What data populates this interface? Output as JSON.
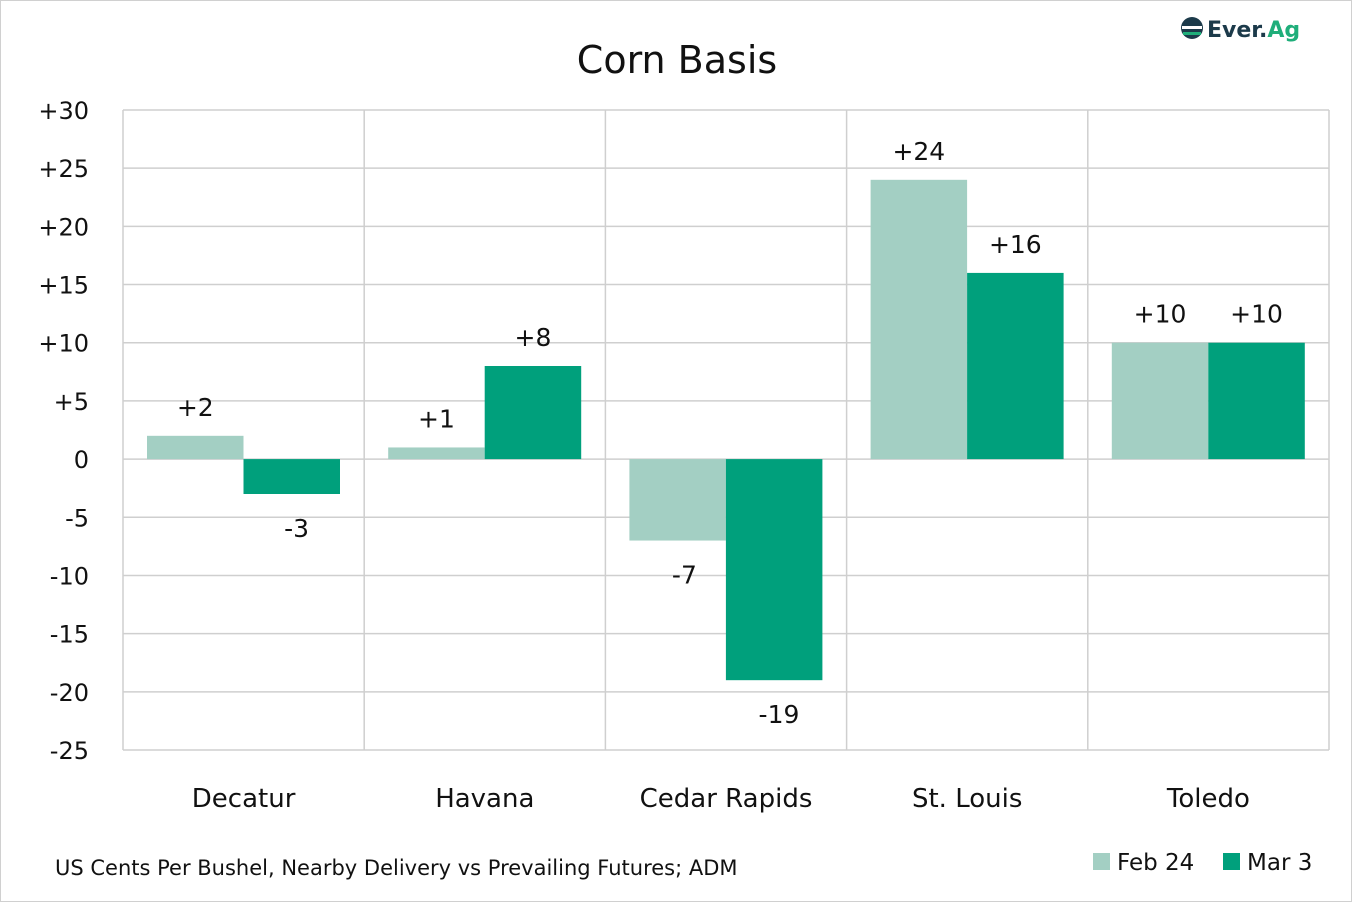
{
  "logo": {
    "text": "Ever.Ag"
  },
  "chart_data": {
    "type": "bar",
    "title": "Corn Basis",
    "categories": [
      "Decatur",
      "Havana",
      "Cedar Rapids",
      "St. Louis",
      "Toledo"
    ],
    "series": [
      {
        "name": "Feb 24",
        "values": [
          2,
          1,
          -7,
          24,
          10
        ],
        "labels": [
          "+2",
          "+1",
          "-7",
          "+24",
          "+10"
        ],
        "color": "#a3cfc3"
      },
      {
        "name": "Mar 3",
        "values": [
          -3,
          8,
          -19,
          16,
          10
        ],
        "labels": [
          "-3",
          "+8",
          "-19",
          "+16",
          "+10"
        ],
        "color": "#00a07c"
      }
    ],
    "ylim": [
      -25,
      30
    ],
    "yticks": [
      30,
      25,
      20,
      15,
      10,
      5,
      0,
      -5,
      -10,
      -15,
      -20,
      -25
    ],
    "ytick_labels": [
      "+30",
      "+25",
      "+20",
      "+15",
      "+10",
      "+5",
      "0",
      "-5",
      "-10",
      "-15",
      "-20",
      "-25"
    ],
    "grid": true,
    "legend_position": "bottom-right",
    "footnote": "US Cents Per Bushel, Nearby Delivery vs Prevailing Futures; ADM"
  }
}
